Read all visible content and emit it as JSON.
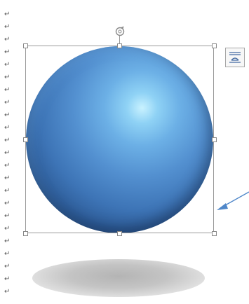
{
  "document": {
    "paragraph_mark": "↵"
  },
  "shape": {
    "type": "sphere",
    "fill_color": "#5390d0",
    "highlight_color": "#c9f2ff",
    "shadow_color": "#b4b4b4"
  },
  "selection": {
    "border_color": "#9a9a9a",
    "rotate_icon": "rotate-handle-icon"
  },
  "layout_options": {
    "icon": "layout-options-icon",
    "accent": "#4a6fa5"
  },
  "annotation": {
    "arrow_color": "#4f87c9"
  }
}
